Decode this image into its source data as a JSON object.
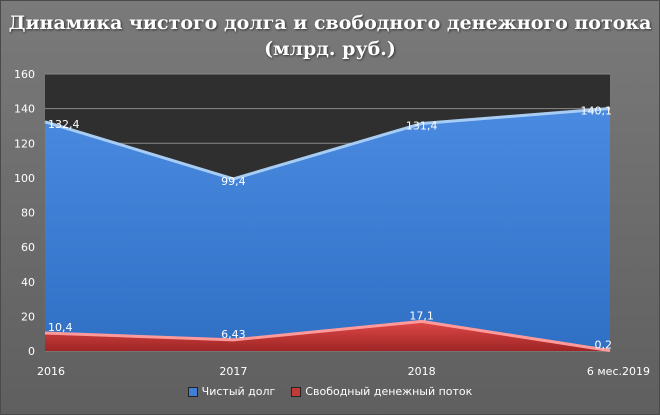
{
  "chart_data": {
    "type": "area",
    "title": "Динамика чистого долга и свободного денежного потока",
    "subtitle": "(млрд. руб.)",
    "categories": [
      "2016",
      "2017",
      "2018",
      "6 мес.2019"
    ],
    "series": [
      {
        "name": "Чистый долг",
        "values": [
          132.4,
          99.4,
          131.4,
          140.1
        ],
        "labels": [
          "132,4",
          "99,4",
          "131,4",
          "140,1"
        ],
        "color": "#3f7fd6"
      },
      {
        "name": "Свободный денежный поток",
        "values": [
          10.4,
          6.43,
          17.1,
          0.2
        ],
        "labels": [
          "10,4",
          "6,43",
          "17,1",
          "0,2"
        ],
        "color": "#c23a3a"
      }
    ],
    "ylim": [
      0,
      160
    ],
    "yticks": [
      "0",
      "20",
      "40",
      "60",
      "80",
      "100",
      "120",
      "140",
      "160"
    ],
    "grid": true,
    "legend": "bottom"
  }
}
